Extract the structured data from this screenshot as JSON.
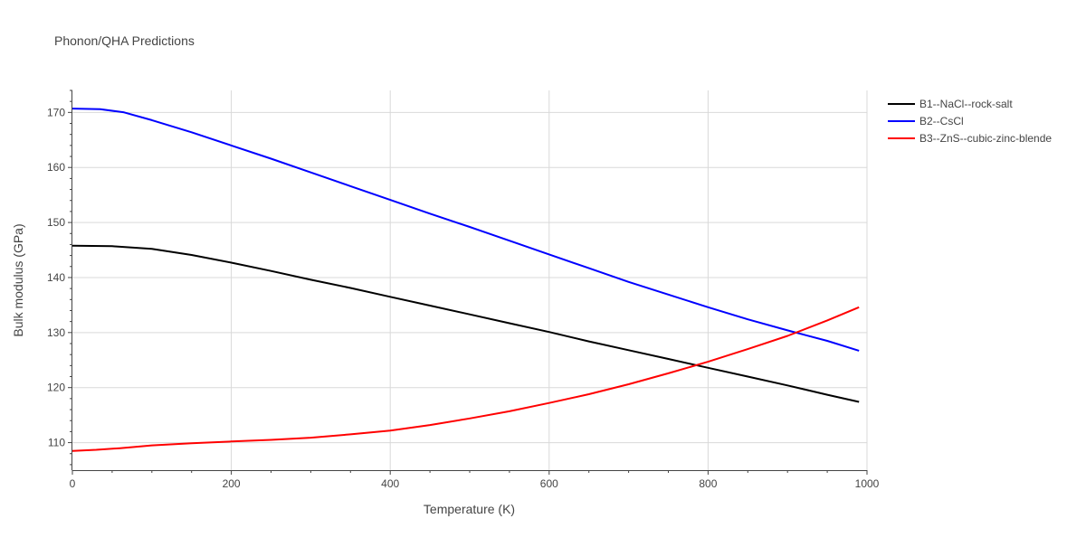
{
  "chart_data": {
    "type": "line",
    "title": "Phonon/QHA Predictions",
    "xlabel": "Temperature (K)",
    "ylabel": "Bulk modulus (GPa)",
    "xlim": [
      0,
      1000
    ],
    "ylim": [
      105,
      174
    ],
    "xticks": [
      0,
      200,
      400,
      600,
      800,
      1000
    ],
    "yticks": [
      110,
      120,
      130,
      140,
      150,
      160,
      170
    ],
    "grid": true,
    "legend_position": "top-right, outside plot area",
    "series": [
      {
        "name": "B1--NaCl--rock-salt",
        "color": "#000000",
        "x": [
          0,
          50,
          100,
          150,
          200,
          250,
          300,
          350,
          400,
          450,
          500,
          550,
          600,
          650,
          700,
          750,
          800,
          850,
          900,
          950,
          990
        ],
        "y": [
          145.8,
          145.7,
          145.2,
          144.1,
          142.7,
          141.2,
          139.6,
          138.1,
          136.5,
          134.9,
          133.3,
          131.7,
          130.1,
          128.4,
          126.8,
          125.2,
          123.6,
          122.0,
          120.4,
          118.7,
          117.4
        ]
      },
      {
        "name": "B2--CsCl",
        "color": "#0000ff",
        "x": [
          0,
          35,
          65,
          100,
          150,
          200,
          250,
          300,
          350,
          400,
          450,
          500,
          550,
          600,
          650,
          700,
          750,
          800,
          850,
          900,
          950,
          990
        ],
        "y": [
          170.7,
          170.6,
          170.0,
          168.6,
          166.4,
          164.0,
          161.6,
          159.1,
          156.6,
          154.1,
          151.6,
          149.2,
          146.7,
          144.2,
          141.7,
          139.2,
          136.9,
          134.6,
          132.4,
          130.4,
          128.5,
          126.7
        ]
      },
      {
        "name": "B3--ZnS--cubic-zinc-blende",
        "color": "#ff0000",
        "x": [
          0,
          30,
          60,
          100,
          150,
          200,
          250,
          300,
          350,
          400,
          450,
          500,
          550,
          600,
          650,
          700,
          750,
          800,
          850,
          900,
          950,
          990
        ],
        "y": [
          108.5,
          108.7,
          109.0,
          109.5,
          109.9,
          110.2,
          110.5,
          110.9,
          111.5,
          112.2,
          113.2,
          114.4,
          115.7,
          117.2,
          118.8,
          120.6,
          122.6,
          124.7,
          127.0,
          129.4,
          132.2,
          134.6
        ]
      }
    ]
  }
}
